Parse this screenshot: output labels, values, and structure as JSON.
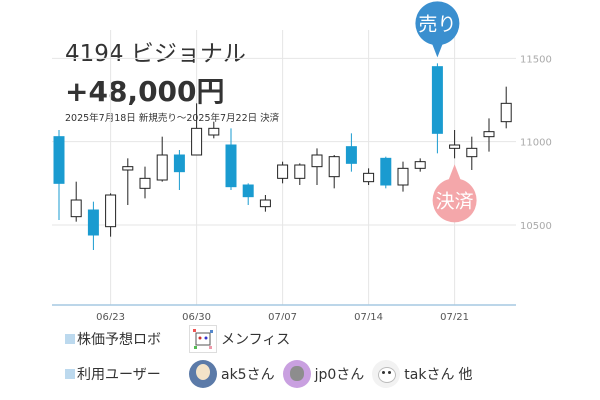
{
  "header": {
    "title": "4194 ビジョナル",
    "profit": "+48,000円",
    "period": "2025年7月18日 新規売り～2025年7月22日 決済"
  },
  "markers": {
    "sell": "売り",
    "settle": "決済"
  },
  "colors": {
    "bull": "#ffffff",
    "bear": "#1a9bd0",
    "sell_bubble": "#3a8fcf",
    "settle_bubble": "#f4a7aa",
    "grid": "#e6e6e6",
    "axis_line": "#a6c9e2"
  },
  "chart_data": {
    "type": "candlestick",
    "x_ticks": [
      "06/23",
      "06/30",
      "07/07",
      "07/14",
      "07/21"
    ],
    "y_ticks": [
      "11500",
      "11000",
      "10500"
    ],
    "ylim": [
      10020,
      11670
    ],
    "candles": [
      {
        "open": 11030,
        "close": 10750,
        "high": 11070,
        "low": 10530
      },
      {
        "open": 10550,
        "close": 10650,
        "high": 10760,
        "low": 10520
      },
      {
        "open": 10590,
        "close": 10440,
        "high": 10640,
        "low": 10350
      },
      {
        "open": 10490,
        "close": 10680,
        "high": 10690,
        "low": 10430
      },
      {
        "open": 10830,
        "close": 10850,
        "high": 10900,
        "low": 10620
      },
      {
        "open": 10720,
        "close": 10780,
        "high": 10850,
        "low": 10660
      },
      {
        "open": 10770,
        "close": 10920,
        "high": 11030,
        "low": 10760
      },
      {
        "open": 10920,
        "close": 10820,
        "high": 10950,
        "low": 10710
      },
      {
        "open": 10920,
        "close": 11080,
        "high": 11230,
        "low": 10920
      },
      {
        "open": 11040,
        "close": 11080,
        "high": 11120,
        "low": 11020
      },
      {
        "open": 10980,
        "close": 10730,
        "high": 11080,
        "low": 10710
      },
      {
        "open": 10740,
        "close": 10670,
        "high": 10750,
        "low": 10620
      },
      {
        "open": 10610,
        "close": 10650,
        "high": 10680,
        "low": 10580
      },
      {
        "open": 10780,
        "close": 10860,
        "high": 10880,
        "low": 10750
      },
      {
        "open": 10780,
        "close": 10860,
        "high": 10870,
        "low": 10740
      },
      {
        "open": 10850,
        "close": 10920,
        "high": 10960,
        "low": 10740
      },
      {
        "open": 10790,
        "close": 10910,
        "high": 10920,
        "low": 10720
      },
      {
        "open": 10970,
        "close": 10870,
        "high": 11050,
        "low": 10820
      },
      {
        "open": 10760,
        "close": 10810,
        "high": 10840,
        "low": 10740
      },
      {
        "open": 10900,
        "close": 10740,
        "high": 10910,
        "low": 10720
      },
      {
        "open": 10740,
        "close": 10840,
        "high": 10880,
        "low": 10700
      },
      {
        "open": 10840,
        "close": 10880,
        "high": 10900,
        "low": 10820
      },
      {
        "open": 11450,
        "close": 11050,
        "high": 11470,
        "low": 10930
      },
      {
        "open": 10960,
        "close": 10980,
        "high": 11070,
        "low": 10900
      },
      {
        "open": 10910,
        "close": 10960,
        "high": 11030,
        "low": 10830
      },
      {
        "open": 11030,
        "close": 11060,
        "high": 11140,
        "low": 10940
      },
      {
        "open": 11120,
        "close": 11230,
        "high": 11330,
        "low": 11080
      }
    ]
  },
  "legend": {
    "robot_label": "株価予想ロボ",
    "robot_name": "メンフィス",
    "users_label": "利用ユーザー",
    "users": [
      "ak5さん",
      "jp0さん",
      "takさん"
    ],
    "more": "他"
  }
}
